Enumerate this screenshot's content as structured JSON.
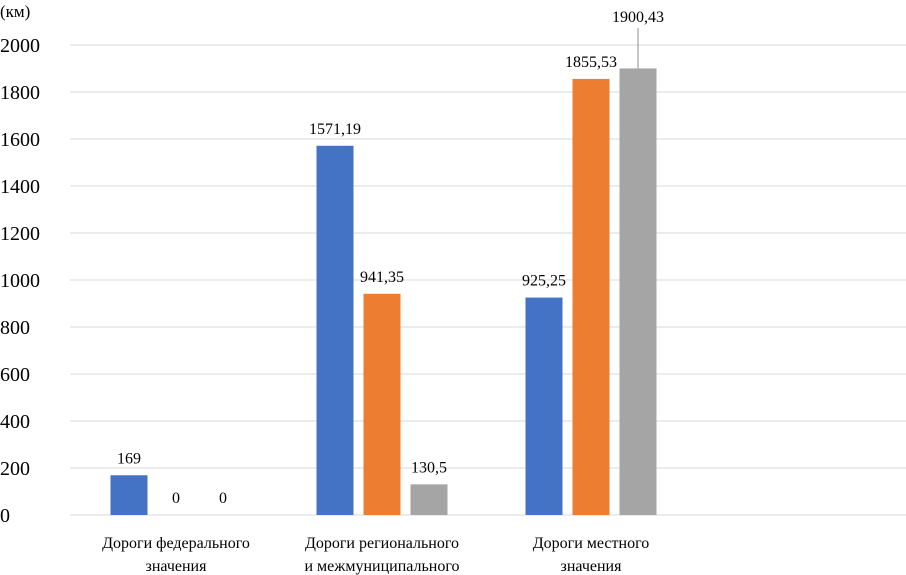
{
  "chart_data": {
    "type": "bar",
    "unit_label": "(км)",
    "categories": [
      [
        "Дороги федерального",
        "значения"
      ],
      [
        "Дороги регионального",
        "и межмуниципального"
      ],
      [
        "Дороги местного",
        "значения"
      ]
    ],
    "series": [
      {
        "color": "#4472c4",
        "values": [
          169,
          1571.19,
          925.25
        ],
        "labels": [
          "169",
          "1571,19",
          "925,25"
        ]
      },
      {
        "color": "#ed7d31",
        "values": [
          0,
          941.35,
          1855.53
        ],
        "labels": [
          "0",
          "941,35",
          "1855,53"
        ]
      },
      {
        "color": "#a5a5a5",
        "values": [
          0,
          130.5,
          1900.43
        ],
        "labels": [
          "0",
          "130,5",
          "1900,43"
        ]
      }
    ],
    "y_ticks": [
      "0",
      "200",
      "400",
      "600",
      "800",
      "1000",
      "1200",
      "1400",
      "1600",
      "1800",
      "2000"
    ],
    "ylim": [
      0,
      2000
    ],
    "grid": true,
    "legend": "none"
  }
}
